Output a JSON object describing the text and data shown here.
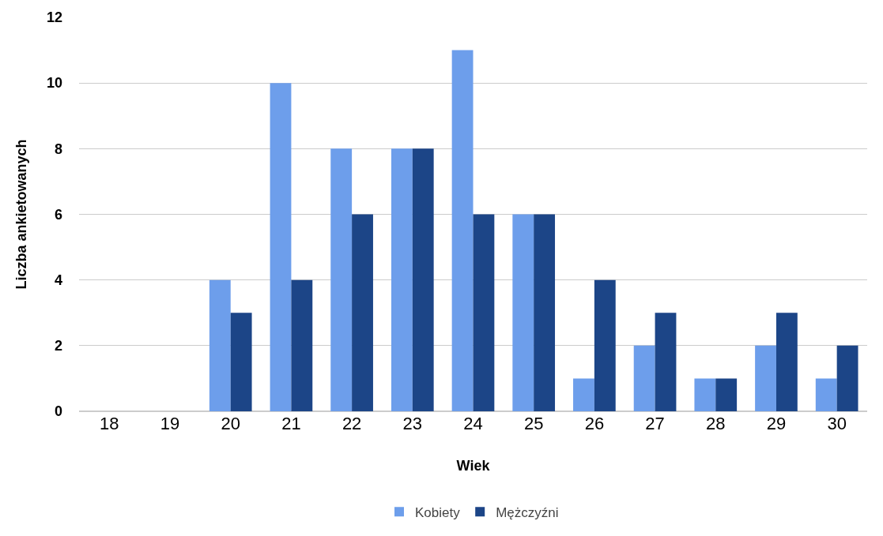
{
  "chart_data": {
    "type": "bar",
    "xlabel": "Wiek",
    "ylabel": "Liczba ankietowanych",
    "categories": [
      "18",
      "19",
      "20",
      "21",
      "22",
      "23",
      "24",
      "25",
      "26",
      "27",
      "28",
      "29",
      "30"
    ],
    "series": [
      {
        "name": "Kobiety",
        "color": "#6d9eeb",
        "values": [
          0,
          0,
          4,
          10,
          8,
          8,
          11,
          6,
          1,
          2,
          1,
          2,
          1
        ]
      },
      {
        "name": "Mężczyźni",
        "color": "#1c4587",
        "values": [
          0,
          0,
          3,
          4,
          6,
          8,
          6,
          6,
          4,
          3,
          1,
          3,
          2
        ]
      }
    ],
    "ylim": [
      0,
      12
    ],
    "yticks": [
      0,
      2,
      4,
      6,
      8,
      10,
      12
    ],
    "grid": "y",
    "legend": "bottom"
  }
}
